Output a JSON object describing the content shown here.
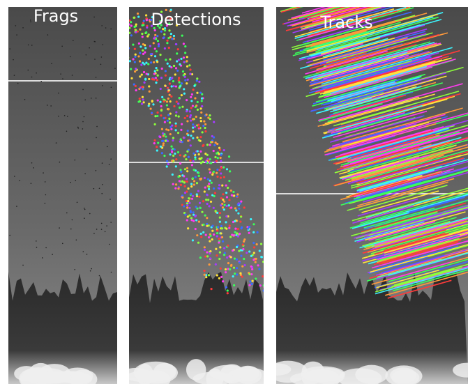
{
  "panels": [
    {
      "label": "Frags"
    },
    {
      "label": "Detections"
    },
    {
      "label": "Tracks"
    }
  ]
}
